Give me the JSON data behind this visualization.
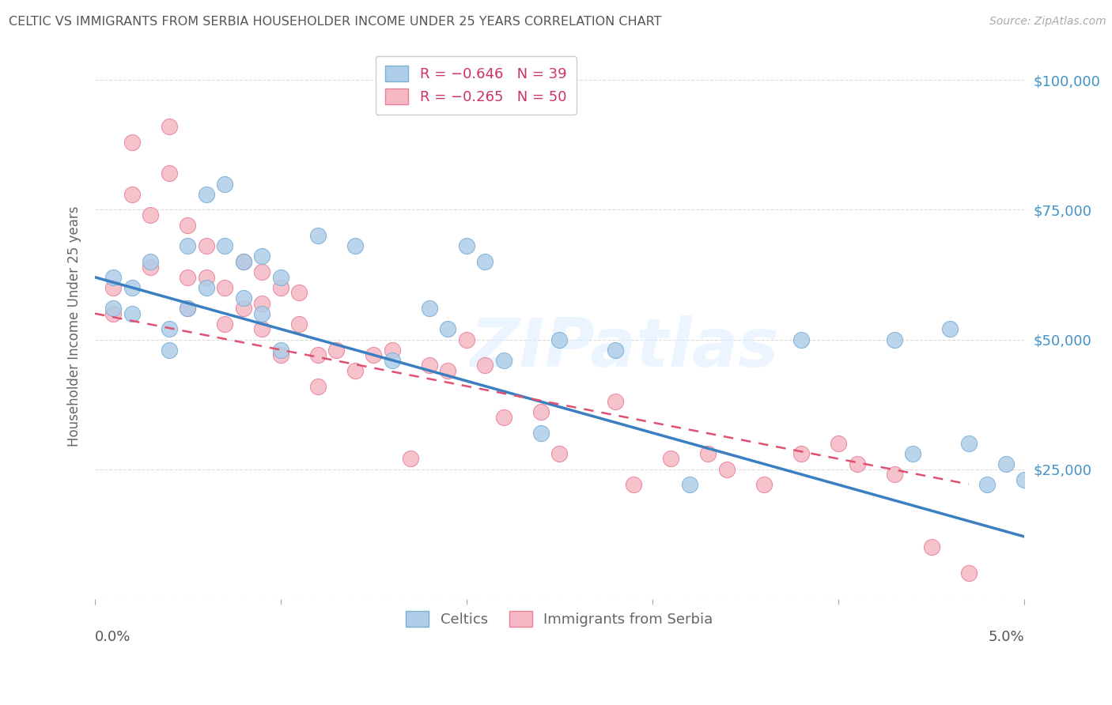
{
  "title": "CELTIC VS IMMIGRANTS FROM SERBIA HOUSEHOLDER INCOME UNDER 25 YEARS CORRELATION CHART",
  "source": "Source: ZipAtlas.com",
  "ylabel": "Householder Income Under 25 years",
  "yticks": [
    0,
    25000,
    50000,
    75000,
    100000
  ],
  "ytick_labels": [
    "",
    "$25,000",
    "$50,000",
    "$75,000",
    "$100,000"
  ],
  "xmin": 0.0,
  "xmax": 0.05,
  "ymin": 0,
  "ymax": 105000,
  "legend_label1": "R = −0.646   N = 39",
  "legend_label2": "R = −0.265   N = 50",
  "legend_label_bottom1": "Celtics",
  "legend_label_bottom2": "Immigrants from Serbia",
  "watermark": "ZIPatlas",
  "celtics_color": "#aecde8",
  "serbia_color": "#f5b8c4",
  "celtics_edge": "#7bafd4",
  "serbia_edge": "#e8809a",
  "trendline_celtics_color": "#3a7fc1",
  "trendline_serbia_color": "#e05070",
  "background_color": "#ffffff",
  "grid_color": "#cccccc",
  "title_color": "#555555",
  "axis_label_color": "#666666",
  "ytick_color": "#4292c6",
  "trendline_celtics_intercept": 62000,
  "trendline_celtics_slope": -1000000,
  "trendline_serbia_intercept": 55000,
  "trendline_serbia_slope": -700000,
  "celtics_x": [
    0.001,
    0.001,
    0.002,
    0.002,
    0.003,
    0.004,
    0.004,
    0.005,
    0.005,
    0.006,
    0.006,
    0.007,
    0.007,
    0.008,
    0.008,
    0.009,
    0.009,
    0.01,
    0.01,
    0.012,
    0.014,
    0.016,
    0.018,
    0.019,
    0.02,
    0.021,
    0.022,
    0.024,
    0.025,
    0.028,
    0.032,
    0.038,
    0.043,
    0.044,
    0.046,
    0.047,
    0.048,
    0.049,
    0.05
  ],
  "celtics_y": [
    62000,
    56000,
    60000,
    55000,
    65000,
    52000,
    48000,
    68000,
    56000,
    78000,
    60000,
    80000,
    68000,
    65000,
    58000,
    66000,
    55000,
    62000,
    48000,
    70000,
    68000,
    46000,
    56000,
    52000,
    68000,
    65000,
    46000,
    32000,
    50000,
    48000,
    22000,
    50000,
    50000,
    28000,
    52000,
    30000,
    22000,
    26000,
    23000
  ],
  "serbia_x": [
    0.001,
    0.001,
    0.002,
    0.002,
    0.003,
    0.003,
    0.004,
    0.004,
    0.005,
    0.005,
    0.005,
    0.006,
    0.006,
    0.007,
    0.007,
    0.008,
    0.008,
    0.009,
    0.009,
    0.009,
    0.01,
    0.01,
    0.011,
    0.011,
    0.012,
    0.012,
    0.013,
    0.014,
    0.015,
    0.016,
    0.017,
    0.018,
    0.019,
    0.02,
    0.021,
    0.022,
    0.024,
    0.025,
    0.028,
    0.029,
    0.031,
    0.033,
    0.034,
    0.036,
    0.038,
    0.04,
    0.041,
    0.043,
    0.045,
    0.047
  ],
  "serbia_y": [
    60000,
    55000,
    88000,
    78000,
    74000,
    64000,
    91000,
    82000,
    72000,
    62000,
    56000,
    68000,
    62000,
    60000,
    53000,
    65000,
    56000,
    63000,
    57000,
    52000,
    60000,
    47000,
    59000,
    53000,
    47000,
    41000,
    48000,
    44000,
    47000,
    48000,
    27000,
    45000,
    44000,
    50000,
    45000,
    35000,
    36000,
    28000,
    38000,
    22000,
    27000,
    28000,
    25000,
    22000,
    28000,
    30000,
    26000,
    24000,
    10000,
    5000
  ]
}
